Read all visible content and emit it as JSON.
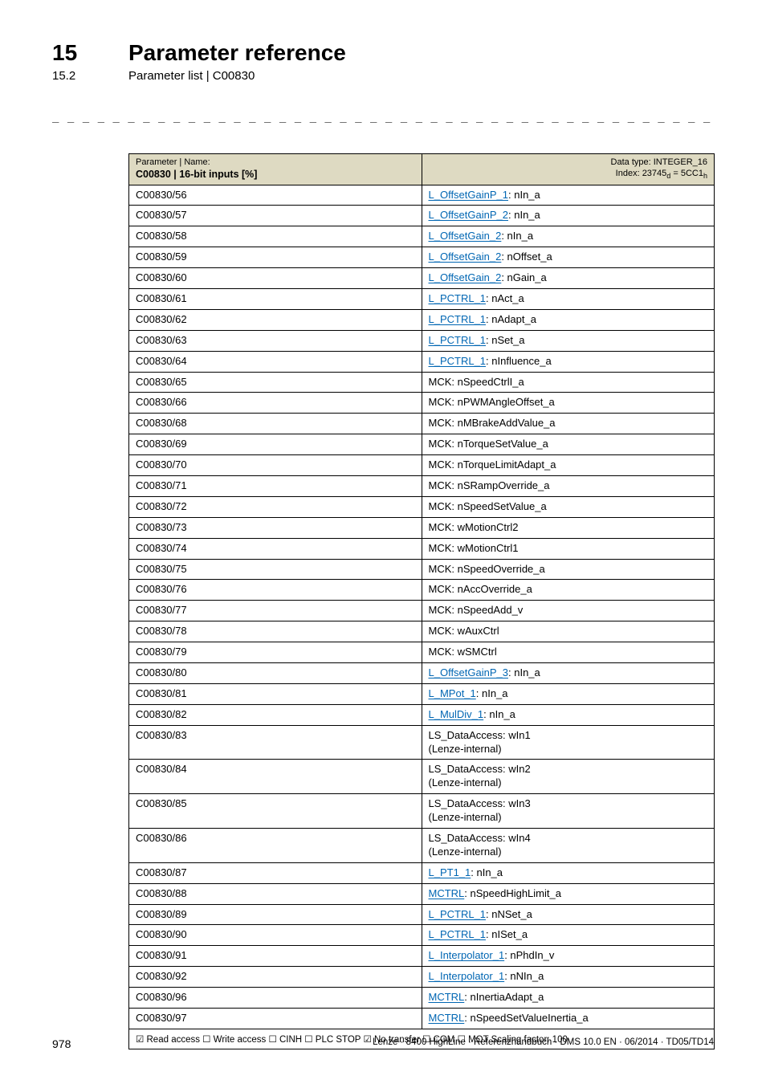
{
  "chapter": {
    "num": "15",
    "title": "Parameter reference"
  },
  "section": {
    "num": "15.2",
    "title": "Parameter list | C00830"
  },
  "dashes": "_ _ _ _ _ _ _ _ _ _ _ _ _ _ _ _ _ _ _ _ _ _ _ _ _ _ _ _ _ _ _ _ _ _ _ _ _ _ _ _ _ _ _ _ _ _ _ _ _ _ _ _ _ _ _ _ _ _ _ _ _ _ _ _",
  "header": {
    "left_line1": "Parameter | Name:",
    "left_line2": "C00830 | 16-bit inputs [%]",
    "right_line1": "Data type: INTEGER_16",
    "right_line2_a": "Index: 23745",
    "right_line2_b": " = 5CC1"
  },
  "rows": [
    {
      "id": "C00830/56",
      "link": "L_OffsetGainP_1",
      "rest": ": nIn_a"
    },
    {
      "id": "C00830/57",
      "link": "L_OffsetGainP_2",
      "rest": ": nIn_a"
    },
    {
      "id": "C00830/58",
      "link": "L_OffsetGain_2",
      "rest": ": nIn_a"
    },
    {
      "id": "C00830/59",
      "link": "L_OffsetGain_2",
      "rest": ": nOffset_a"
    },
    {
      "id": "C00830/60",
      "link": "L_OffsetGain_2",
      "rest": ": nGain_a"
    },
    {
      "id": "C00830/61",
      "link": "L_PCTRL_1",
      "rest": ": nAct_a"
    },
    {
      "id": "C00830/62",
      "link": "L_PCTRL_1",
      "rest": ": nAdapt_a"
    },
    {
      "id": "C00830/63",
      "link": "L_PCTRL_1",
      "rest": ": nSet_a"
    },
    {
      "id": "C00830/64",
      "link": "L_PCTRL_1",
      "rest": ": nInfluence_a"
    },
    {
      "id": "C00830/65",
      "plain": "MCK: nSpeedCtrlI_a"
    },
    {
      "id": "C00830/66",
      "plain": "MCK: nPWMAngleOffset_a"
    },
    {
      "id": "C00830/68",
      "plain": "MCK: nMBrakeAddValue_a"
    },
    {
      "id": "C00830/69",
      "plain": "MCK: nTorqueSetValue_a"
    },
    {
      "id": "C00830/70",
      "plain": "MCK: nTorqueLimitAdapt_a"
    },
    {
      "id": "C00830/71",
      "plain": "MCK: nSRampOverride_a"
    },
    {
      "id": "C00830/72",
      "plain": "MCK: nSpeedSetValue_a"
    },
    {
      "id": "C00830/73",
      "plain": "MCK: wMotionCtrl2"
    },
    {
      "id": "C00830/74",
      "plain": "MCK: wMotionCtrl1"
    },
    {
      "id": "C00830/75",
      "plain": "MCK: nSpeedOverride_a"
    },
    {
      "id": "C00830/76",
      "plain": "MCK: nAccOverride_a"
    },
    {
      "id": "C00830/77",
      "plain": "MCK: nSpeedAdd_v"
    },
    {
      "id": "C00830/78",
      "plain": "MCK: wAuxCtrl"
    },
    {
      "id": "C00830/79",
      "plain": "MCK: wSMCtrl"
    },
    {
      "id": "C00830/80",
      "link": "L_OffsetGainP_3",
      "rest": ": nIn_a"
    },
    {
      "id": "C00830/81",
      "link": "L_MPot_1",
      "rest": ": nIn_a"
    },
    {
      "id": "C00830/82",
      "link": "L_MulDiv_1",
      "rest": ": nIn_a"
    },
    {
      "id": "C00830/83",
      "plain": "LS_DataAccess: wIn1\n(Lenze-internal)"
    },
    {
      "id": "C00830/84",
      "plain": "LS_DataAccess: wIn2\n(Lenze-internal)"
    },
    {
      "id": "C00830/85",
      "plain": "LS_DataAccess: wIn3\n(Lenze-internal)"
    },
    {
      "id": "C00830/86",
      "plain": "LS_DataAccess: wIn4\n(Lenze-internal)"
    },
    {
      "id": "C00830/87",
      "link": "L_PT1_1",
      "rest": ": nIn_a"
    },
    {
      "id": "C00830/88",
      "link": "MCTRL",
      "rest": ": nSpeedHighLimit_a"
    },
    {
      "id": "C00830/89",
      "link": "L_PCTRL_1",
      "rest": ": nNSet_a"
    },
    {
      "id": "C00830/90",
      "link": "L_PCTRL_1",
      "rest": ": nISet_a"
    },
    {
      "id": "C00830/91",
      "link": "L_Interpolator_1",
      "rest": ": nPhdIn_v"
    },
    {
      "id": "C00830/92",
      "link": "L_Interpolator_1",
      "rest": ": nNIn_a"
    },
    {
      "id": "C00830/96",
      "link": "MCTRL",
      "rest": ": nInertiaAdapt_a"
    },
    {
      "id": "C00830/97",
      "link": "MCTRL",
      "rest": ": nSpeedSetValueInertia_a"
    }
  ],
  "footer_row": "☑ Read access   ☐ Write access   ☐ CINH   ☐ PLC STOP   ☑ No transfer   ☐ COM   ☐ MOT    Scaling factor: 100",
  "page_footer": {
    "page": "978",
    "text": "Lenze · 8400 HighLine · Referenzhandbuch · DMS 10.0 EN · 06/2014 · TD05/TD14"
  }
}
